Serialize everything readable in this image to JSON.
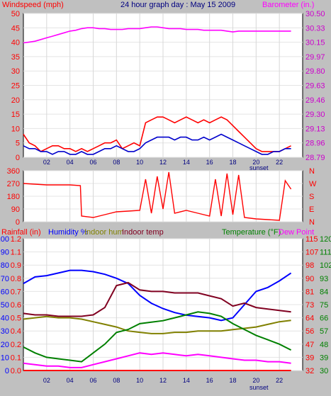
{
  "header": {
    "windspeed_label": "Windspeed (mph)",
    "title": "24 hour graph day : May 15 2009",
    "barometer_label": "Barometer (in.)"
  },
  "colors": {
    "wind": "#ff0000",
    "gust": "#ff0000",
    "wind_avg": "#0000cc",
    "barometer": "#ff00ff",
    "direction": "#ff0000",
    "humidity": "#0000ff",
    "indoor_hum": "#808000",
    "indoor_temp": "#800020",
    "temperature": "#008000",
    "dew_point": "#ff00ff",
    "rain": "#ff0000",
    "axis_left": "#ff0000",
    "axis_right": "#cc00cc",
    "plot_bg": "#ffffff",
    "frame_bg": "#c0c0c0"
  },
  "x_axis": {
    "hour_labels": [
      "02",
      "04",
      "06",
      "08",
      "10",
      "12",
      "14",
      "16",
      "18",
      "20",
      "22"
    ],
    "sunset_label": "sunset",
    "tick_hours": [
      2,
      4,
      6,
      8,
      10,
      12,
      14,
      16,
      18,
      20,
      22
    ]
  },
  "wind_chart": {
    "left_ticks": [
      "0",
      "5",
      "10",
      "15",
      "20",
      "25",
      "30",
      "35",
      "40",
      "45",
      "50"
    ],
    "right_ticks": [
      "28.79",
      "28.96",
      "29.13",
      "29.30",
      "29.46",
      "29.63",
      "29.80",
      "29.97",
      "30.15",
      "30.33",
      "30.50"
    ],
    "left_range": [
      0,
      50
    ],
    "right_range": [
      28.79,
      30.5
    ]
  },
  "direction_chart": {
    "left_ticks": [
      "0",
      "90",
      "180",
      "270",
      "360"
    ],
    "right_ticks": [
      "N",
      "E",
      "S",
      "W",
      "N"
    ],
    "range": [
      0,
      360
    ]
  },
  "climate_chart": {
    "labels": {
      "rainfall": "Rainfall (in)",
      "humidity": "Humidity %",
      "indoor_hum": "Indoor hum",
      "indoor_temp": "Indoor temp",
      "temperature": "Temperature (°F)",
      "dew_point": "Dew Point"
    },
    "humidity_ticks": [
      "0",
      "10",
      "20",
      "30",
      "40",
      "50",
      "60",
      "70",
      "80",
      "90",
      "100"
    ],
    "rain_ticks": [
      "0.0",
      "0.1",
      "0.2",
      "0.4",
      "0.5",
      "0.6",
      "0.7",
      "0.8",
      "0.9",
      "1.1",
      "1.2"
    ],
    "temp_ticks_left": [
      "32",
      "39",
      "47",
      "56",
      "64",
      "73",
      "81",
      "90",
      "98",
      "107",
      "115"
    ],
    "temp_ticks_right": [
      "30",
      "39",
      "48",
      "57",
      "66",
      "75",
      "84",
      "93",
      "102",
      "111",
      "120"
    ]
  },
  "chart_data": [
    {
      "type": "line",
      "title": "24 hour graph day : May 15 2009",
      "xlabel": "",
      "ylabel": "Windspeed (mph)",
      "y2label": "Barometer (in.)",
      "x_hours": [
        0,
        0.5,
        1,
        1.5,
        2,
        2.5,
        3,
        3.5,
        4,
        4.5,
        5,
        5.5,
        6,
        6.5,
        7,
        7.5,
        8,
        8.5,
        9,
        9.5,
        10,
        10.5,
        11,
        11.5,
        12,
        12.5,
        13,
        13.5,
        14,
        14.5,
        15,
        15.5,
        16,
        16.5,
        17,
        17.5,
        18,
        18.5,
        19,
        19.5,
        20,
        20.5,
        21,
        21.5,
        22,
        22.5,
        23
      ],
      "ylim": [
        0,
        50
      ],
      "y2lim": [
        28.79,
        30.5
      ],
      "series": [
        {
          "axis": "left",
          "values": [
            8,
            5,
            4,
            2,
            3,
            4,
            4,
            3,
            3,
            2,
            3,
            2,
            3,
            4,
            5,
            5,
            6,
            3,
            4,
            5,
            4,
            12,
            13,
            14,
            14,
            13,
            12,
            13,
            14,
            13,
            12,
            13,
            12,
            13,
            14,
            13,
            11,
            9,
            7,
            5,
            3,
            2,
            2,
            2,
            2,
            3,
            4
          ]
        },
        {
          "axis": "left",
          "values": [
            4,
            3,
            3,
            2,
            2,
            1,
            2,
            2,
            1,
            1,
            2,
            1,
            1,
            2,
            3,
            3,
            4,
            3,
            2,
            2,
            3,
            5,
            6,
            7,
            7,
            7,
            6,
            7,
            7,
            6,
            6,
            7,
            6,
            7,
            8,
            7,
            6,
            5,
            4,
            3,
            2,
            1,
            1,
            2,
            2,
            3,
            3
          ]
        },
        {
          "axis": "right",
          "values": [
            30.15,
            30.16,
            30.17,
            30.19,
            30.21,
            30.23,
            30.25,
            30.27,
            30.29,
            30.3,
            30.32,
            30.33,
            30.33,
            30.32,
            30.32,
            30.31,
            30.31,
            30.31,
            30.32,
            30.32,
            30.32,
            30.33,
            30.34,
            30.34,
            30.33,
            30.32,
            30.32,
            30.32,
            30.31,
            30.31,
            30.31,
            30.3,
            30.3,
            30.3,
            30.3,
            30.29,
            30.28,
            30.29,
            30.29,
            30.29,
            30.29,
            30.29,
            30.29,
            30.29,
            30.29,
            30.29,
            30.29
          ]
        }
      ]
    },
    {
      "type": "line",
      "ylabel": "",
      "ylim": [
        0,
        360
      ],
      "x_hours": [
        0,
        1,
        2,
        3,
        4,
        4.9,
        5,
        6,
        7,
        8,
        9,
        10,
        10.5,
        11,
        11.5,
        12,
        12.5,
        13,
        14,
        15,
        16,
        16.5,
        17,
        17.5,
        18,
        18.5,
        19,
        20,
        21,
        22,
        22.5,
        23
      ],
      "series": [
        {
          "values": [
            270,
            265,
            260,
            260,
            260,
            255,
            40,
            30,
            50,
            70,
            75,
            80,
            300,
            60,
            320,
            90,
            350,
            60,
            80,
            60,
            40,
            300,
            40,
            340,
            50,
            330,
            30,
            20,
            15,
            10,
            290,
            230
          ]
        }
      ]
    },
    {
      "type": "line",
      "title": "",
      "x_hours": [
        0,
        1,
        2,
        3,
        4,
        5,
        6,
        7,
        8,
        9,
        10,
        11,
        12,
        13,
        14,
        15,
        16,
        17,
        18,
        19,
        20,
        21,
        22,
        23
      ],
      "ylim": [
        0,
        100
      ],
      "series": [
        {
          "axis": "humidity",
          "values": [
            66,
            71,
            72,
            74,
            76,
            76,
            75,
            73,
            70,
            66,
            57,
            51,
            47,
            44,
            42,
            41,
            40,
            38,
            40,
            50,
            60,
            63,
            68,
            74
          ]
        },
        {
          "axis": "humidity",
          "values": [
            39,
            40,
            41,
            40,
            40,
            39,
            37,
            35,
            33,
            30,
            29,
            28,
            28,
            29,
            29,
            30,
            30,
            30,
            31,
            32,
            33,
            35,
            37,
            38
          ]
        },
        {
          "axis": "temp_right",
          "values": [
            69,
            68,
            68,
            67,
            67,
            67,
            68,
            73,
            88,
            90,
            85,
            84,
            84,
            83,
            83,
            83,
            81,
            79,
            74,
            76,
            73,
            72,
            71,
            70
          ]
        },
        {
          "axis": "temp_right",
          "values": [
            46,
            42,
            39,
            38,
            37,
            36,
            42,
            48,
            56,
            58,
            62,
            63,
            64,
            66,
            68,
            70,
            69,
            67,
            62,
            58,
            54,
            51,
            48,
            44
          ]
        },
        {
          "axis": "temp_right",
          "values": [
            35,
            34,
            33,
            33,
            32,
            32,
            34,
            36,
            38,
            40,
            42,
            41,
            42,
            41,
            40,
            41,
            40,
            39,
            38,
            37,
            37,
            36,
            36,
            35
          ]
        },
        {
          "axis": "rain",
          "values": [
            0,
            0,
            0,
            0,
            0,
            0,
            0,
            0,
            0,
            0,
            0,
            0,
            0,
            0,
            0,
            0,
            0,
            0,
            0,
            0,
            0,
            0,
            0,
            0
          ]
        }
      ]
    }
  ]
}
